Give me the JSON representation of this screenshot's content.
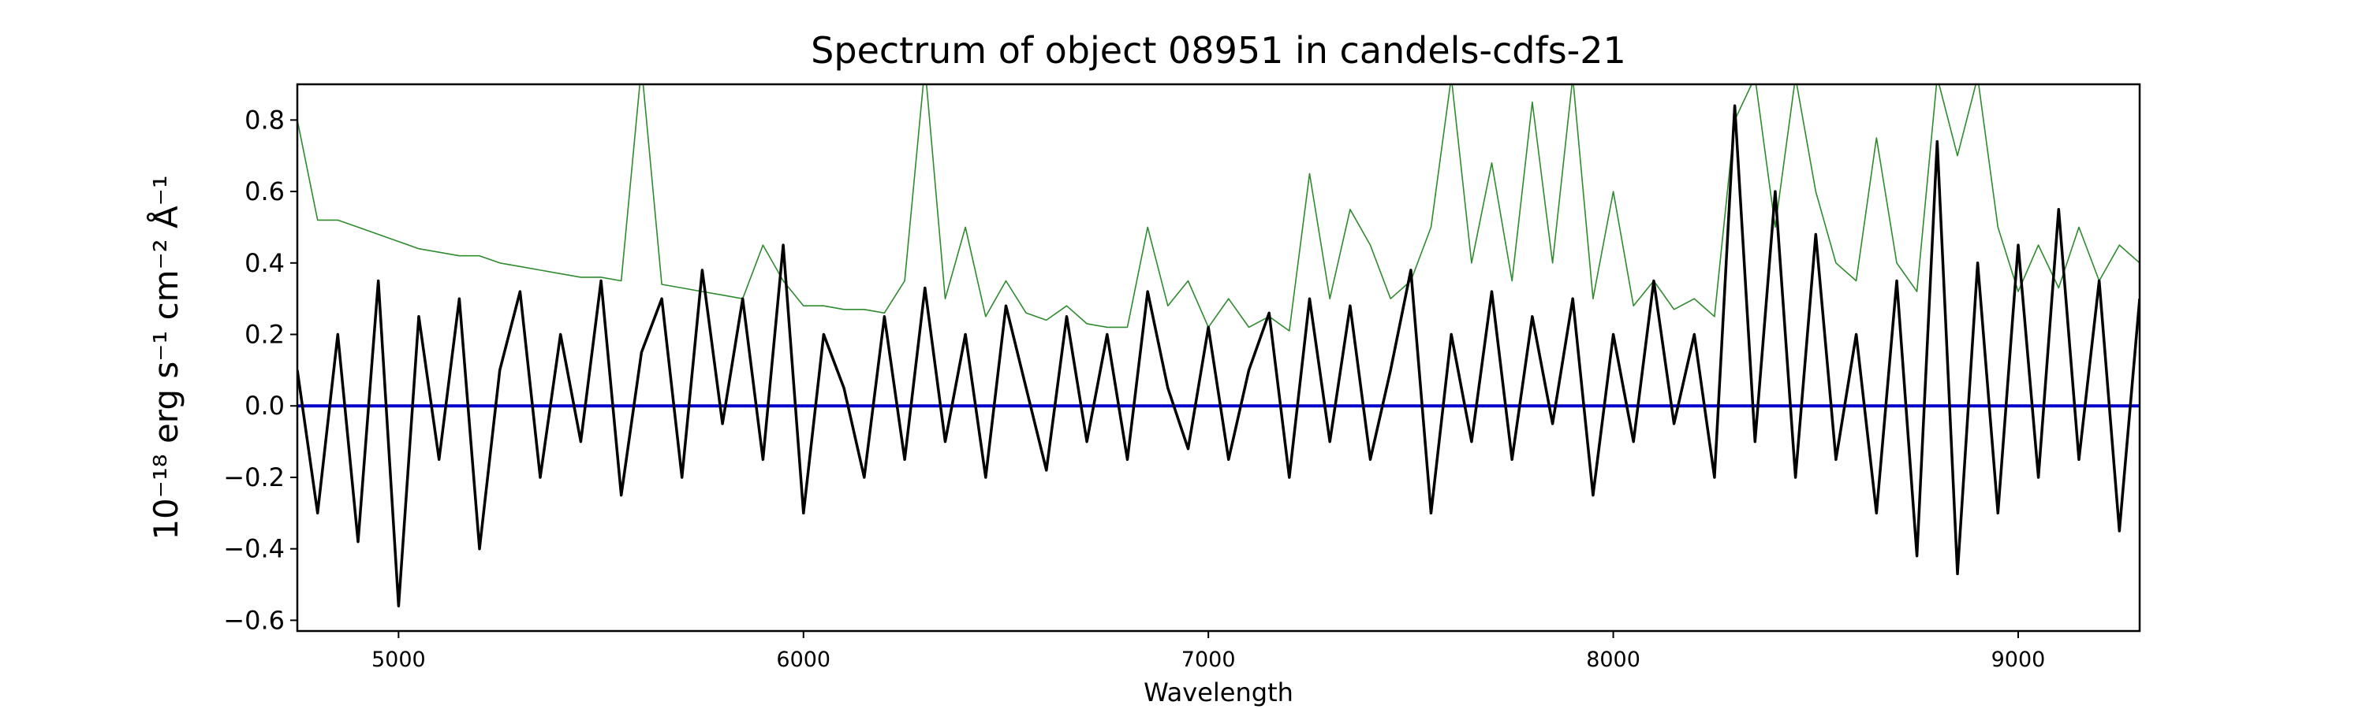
{
  "chart_data": {
    "type": "line",
    "title": "Spectrum of object 08951 in candels-cdfs-21",
    "xlabel": "Wavelength",
    "ylabel": "10⁻¹⁸ erg s⁻¹ cm⁻² Å⁻¹",
    "xlim": [
      4750,
      9300
    ],
    "ylim": [
      -0.63,
      0.9
    ],
    "xticks": [
      5000,
      6000,
      7000,
      8000,
      9000
    ],
    "yticks": [
      {
        "value": -0.6,
        "label": "−0.6"
      },
      {
        "value": -0.4,
        "label": "−0.4"
      },
      {
        "value": -0.2,
        "label": "−0.2"
      },
      {
        "value": 0,
        "label": "0.0"
      },
      0.2,
      0.4,
      0.6,
      0.8
    ],
    "grid": false,
    "x": [
      4750,
      4800,
      4850,
      4900,
      4950,
      5000,
      5050,
      5100,
      5150,
      5200,
      5250,
      5300,
      5350,
      5400,
      5450,
      5500,
      5550,
      5600,
      5650,
      5700,
      5750,
      5800,
      5850,
      5900,
      5950,
      6000,
      6050,
      6100,
      6150,
      6200,
      6250,
      6300,
      6350,
      6400,
      6450,
      6500,
      6550,
      6600,
      6650,
      6700,
      6750,
      6800,
      6850,
      6900,
      6950,
      7000,
      7050,
      7100,
      7150,
      7200,
      7250,
      7300,
      7350,
      7400,
      7450,
      7500,
      7550,
      7600,
      7650,
      7700,
      7750,
      7800,
      7850,
      7900,
      7950,
      8000,
      8050,
      8100,
      8150,
      8200,
      8250,
      8300,
      8350,
      8400,
      8450,
      8500,
      8550,
      8600,
      8650,
      8700,
      8750,
      8800,
      8850,
      8900,
      8950,
      9000,
      9050,
      9100,
      9150,
      9200,
      9250,
      9300
    ],
    "series": [
      {
        "color": "#2e8b2e",
        "width": 1.6,
        "values": [
          0.8,
          0.52,
          0.52,
          0.5,
          0.48,
          0.46,
          0.44,
          0.43,
          0.42,
          0.42,
          0.4,
          0.39,
          0.38,
          0.37,
          0.36,
          0.36,
          0.35,
          0.95,
          0.34,
          0.33,
          0.32,
          0.31,
          0.3,
          0.45,
          0.35,
          0.28,
          0.28,
          0.27,
          0.27,
          0.26,
          0.35,
          0.95,
          0.3,
          0.5,
          0.25,
          0.35,
          0.26,
          0.24,
          0.28,
          0.23,
          0.22,
          0.22,
          0.5,
          0.28,
          0.35,
          0.22,
          0.3,
          0.22,
          0.25,
          0.21,
          0.65,
          0.3,
          0.55,
          0.45,
          0.3,
          0.35,
          0.5,
          0.92,
          0.4,
          0.68,
          0.35,
          0.85,
          0.4,
          0.92,
          0.3,
          0.6,
          0.28,
          0.35,
          0.27,
          0.3,
          0.25,
          0.8,
          0.92,
          0.5,
          0.92,
          0.6,
          0.4,
          0.35,
          0.75,
          0.4,
          0.32,
          0.92,
          0.7,
          0.92,
          0.5,
          0.32,
          0.45,
          0.33,
          0.5,
          0.35,
          0.45,
          0.4
        ]
      },
      {
        "color": "#0000cc",
        "width": 4,
        "x": [
          4750,
          9300
        ],
        "values": [
          0,
          0
        ]
      },
      {
        "color": "#000000",
        "width": 3.5,
        "values": [
          0.1,
          -0.3,
          0.2,
          -0.38,
          0.35,
          -0.56,
          0.25,
          -0.15,
          0.3,
          -0.4,
          0.1,
          0.32,
          -0.2,
          0.2,
          -0.1,
          0.35,
          -0.25,
          0.15,
          0.3,
          -0.2,
          0.38,
          -0.05,
          0.3,
          -0.15,
          0.45,
          -0.3,
          0.2,
          0.05,
          -0.2,
          0.25,
          -0.15,
          0.33,
          -0.1,
          0.2,
          -0.2,
          0.28,
          0.05,
          -0.18,
          0.25,
          -0.1,
          0.2,
          -0.15,
          0.32,
          0.05,
          -0.12,
          0.22,
          -0.15,
          0.1,
          0.26,
          -0.2,
          0.3,
          -0.1,
          0.28,
          -0.15,
          0.1,
          0.38,
          -0.3,
          0.2,
          -0.1,
          0.32,
          -0.15,
          0.25,
          -0.05,
          0.3,
          -0.25,
          0.2,
          -0.1,
          0.35,
          -0.05,
          0.2,
          -0.2,
          0.84,
          -0.1,
          0.6,
          -0.2,
          0.48,
          -0.15,
          0.2,
          -0.3,
          0.35,
          -0.42,
          0.74,
          -0.47,
          0.4,
          -0.3,
          0.45,
          -0.2,
          0.55,
          -0.15,
          0.35,
          -0.35,
          0.3
        ]
      }
    ]
  }
}
